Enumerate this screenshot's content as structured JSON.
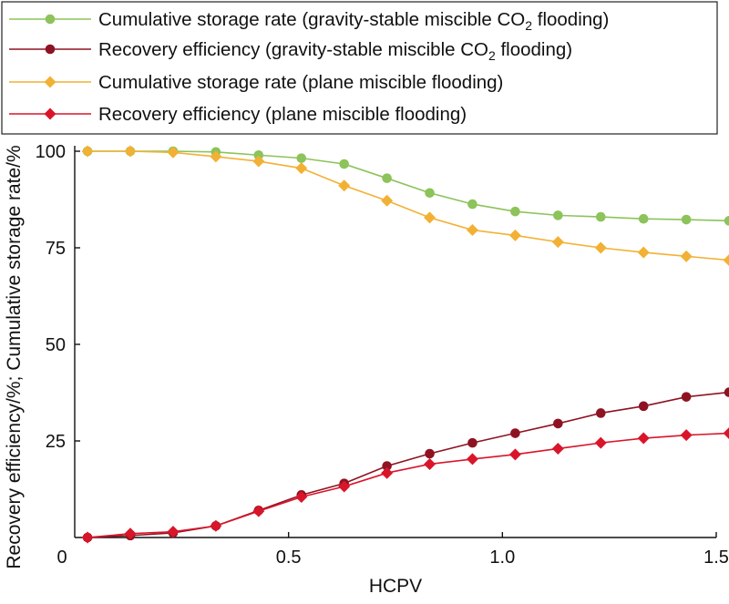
{
  "chart_data": {
    "type": "line",
    "xlabel": "HCPV",
    "ylabel": "Recovery efficiency/%; Cumulative storage rate/%",
    "xlim": [
      0,
      1.5
    ],
    "ylim": [
      0,
      100
    ],
    "x_ticks": [
      0.5,
      1.0,
      1.5
    ],
    "x_tick_labels": [
      "0.5",
      "1.0",
      "1.5"
    ],
    "x_origin_label": "0",
    "y_ticks": [
      25,
      50,
      75,
      100
    ],
    "y_tick_labels": [
      "25",
      "50",
      "75",
      "100"
    ],
    "grid": false,
    "legend_position": "top",
    "x": [
      0.03,
      0.13,
      0.23,
      0.33,
      0.43,
      0.53,
      0.63,
      0.73,
      0.83,
      0.93,
      1.03,
      1.13,
      1.23,
      1.33,
      1.43,
      1.53
    ],
    "series": [
      {
        "label_parts": [
          "Cumulative storage rate (gravity-stable miscible CO",
          "2",
          " flooding)"
        ],
        "color": "#8cc35a",
        "marker": "circle",
        "values": [
          100,
          100,
          100,
          99.8,
          99,
          98.2,
          96.7,
          93,
          89.2,
          86.3,
          84.4,
          83.4,
          83,
          82.5,
          82.3,
          82
        ]
      },
      {
        "label_parts": [
          "Recovery efficiency (gravity-stable miscible CO",
          "2",
          " flooding)"
        ],
        "color": "#8e1322",
        "marker": "circle",
        "values": [
          0,
          0.5,
          1.2,
          3,
          7,
          11,
          14,
          18.5,
          21.7,
          24.5,
          27,
          29.5,
          32.2,
          34,
          36.4,
          37.6
        ]
      },
      {
        "label_parts": [
          "Cumulative storage rate (plane miscible flooding)"
        ],
        "color": "#f2b134",
        "marker": "diamond",
        "values": [
          100,
          100,
          99.7,
          98.6,
          97.4,
          95.6,
          91.1,
          87.2,
          82.8,
          79.6,
          78.2,
          76.5,
          75,
          73.8,
          72.8,
          71.8
        ]
      },
      {
        "label_parts": [
          "Recovery efficiency (plane miscible flooding)"
        ],
        "color": "#d9152a",
        "marker": "diamond",
        "values": [
          0,
          1,
          1.5,
          3,
          6.8,
          10.5,
          13.2,
          16.7,
          19,
          20.3,
          21.5,
          23,
          24.5,
          25.7,
          26.5,
          27
        ]
      }
    ]
  }
}
